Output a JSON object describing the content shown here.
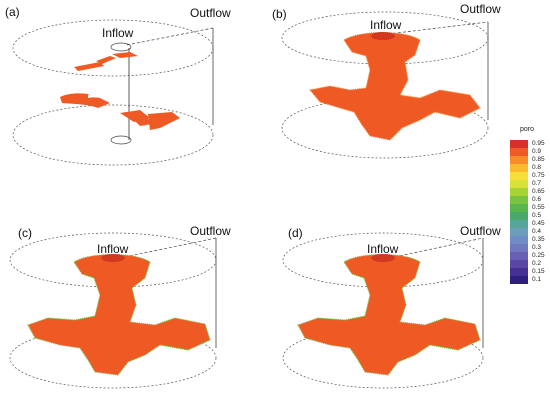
{
  "panels": [
    {
      "id": "a",
      "label": "(a)",
      "inflow": "Inflow",
      "outflow": "Outflow"
    },
    {
      "id": "b",
      "label": "(b)",
      "inflow": "Inflow",
      "outflow": "Outflow"
    },
    {
      "id": "c",
      "label": "(c)",
      "inflow": "Inflow",
      "outflow": "Outflow"
    },
    {
      "id": "d",
      "label": "(d)",
      "inflow": "Inflow",
      "outflow": "Outflow"
    }
  ],
  "colorbar": {
    "title": "poro",
    "ticks": [
      "0.95",
      "0.9",
      "0.85",
      "0.8",
      "0.75",
      "0.7",
      "0.65",
      "0.6",
      "0.55",
      "0.5",
      "0.45",
      "0.4",
      "0.35",
      "0.3",
      "0.25",
      "0.2",
      "0.15",
      "0.1"
    ],
    "colors": [
      "#d7302a",
      "#ee5b28",
      "#f88b2a",
      "#fbba2e",
      "#f6df38",
      "#d9e238",
      "#a8d337",
      "#79c340",
      "#5ab54d",
      "#4aa86a",
      "#58a59a",
      "#6b9eb8",
      "#6f8cc4",
      "#7078c0",
      "#6a60b3",
      "#5a46a4",
      "#462f93",
      "#2f1f7c"
    ]
  },
  "colors": {
    "fracture": "#ef5a24",
    "fracture_dark": "#e3471c",
    "fringe": "#7fb83c"
  }
}
